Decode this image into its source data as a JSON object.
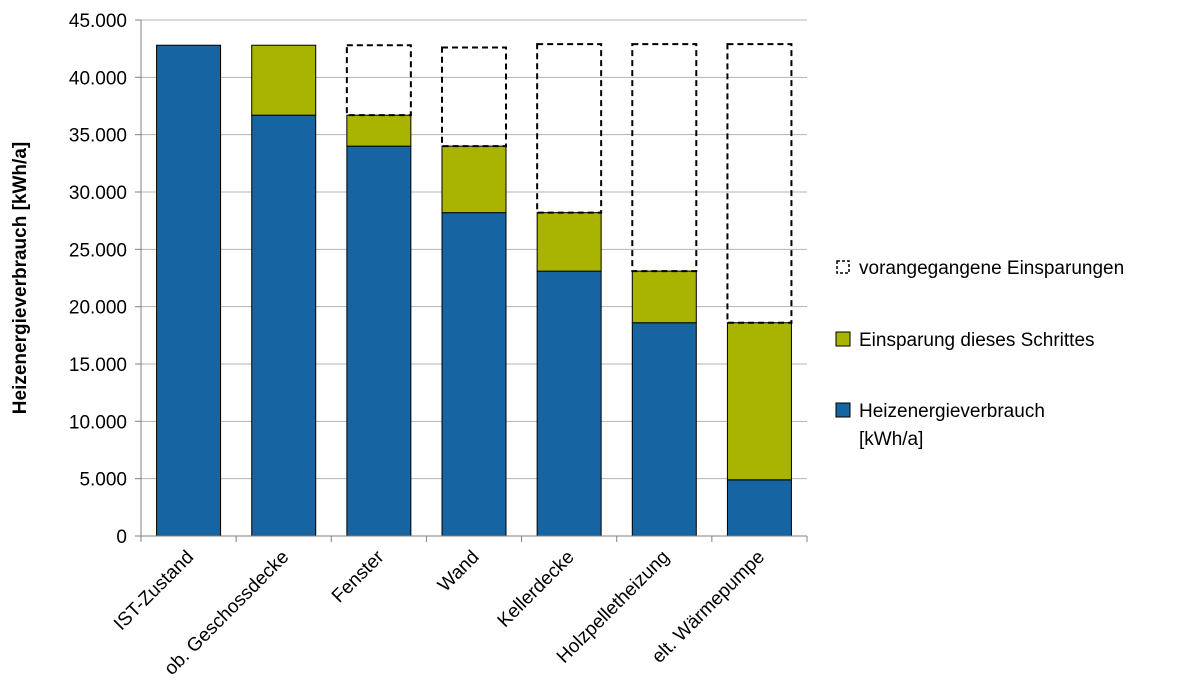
{
  "chart_data": {
    "type": "bar",
    "stacked": true,
    "title": "",
    "xlabel": "",
    "ylabel": "Heizenergieverbrauch [kWh/a]",
    "ylim": [
      0,
      45000
    ],
    "y_ticks": [
      0,
      5000,
      10000,
      15000,
      20000,
      25000,
      30000,
      35000,
      40000,
      45000
    ],
    "y_tick_labels": [
      "0",
      "5.000",
      "10.000",
      "15.000",
      "20.000",
      "25.000",
      "30.000",
      "35.000",
      "40.000",
      "45.000"
    ],
    "grid": "horizontal",
    "legend_position": "right",
    "categories": [
      "IST-Zustand",
      "ob. Geschossdecke",
      "Fenster",
      "Wand",
      "Kellerdecke",
      "Holzpelletheizung",
      "elt. Wärmepumpe"
    ],
    "series": [
      {
        "name": "Heizenergieverbrauch [kWh/a]",
        "legend_lines": [
          "Heizenergieverbrauch",
          "[kWh/a]"
        ],
        "color": "#1764A2",
        "style": "solid",
        "values": [
          42800,
          36700,
          34000,
          28200,
          23100,
          18600,
          4900
        ]
      },
      {
        "name": "Einsparung dieses Schrittes",
        "legend_lines": [
          "Einsparung dieses Schrittes"
        ],
        "color": "#A8B400",
        "style": "solid",
        "values": [
          0,
          6100,
          2700,
          5800,
          5100,
          4500,
          13700
        ]
      },
      {
        "name": "vorangegangene Einsparungen",
        "legend_lines": [
          "vorangegangene Einsparungen"
        ],
        "color": "#000000",
        "style": "dashed-outline",
        "values": [
          0,
          0,
          6100,
          8600,
          14700,
          19800,
          24300
        ]
      }
    ]
  }
}
